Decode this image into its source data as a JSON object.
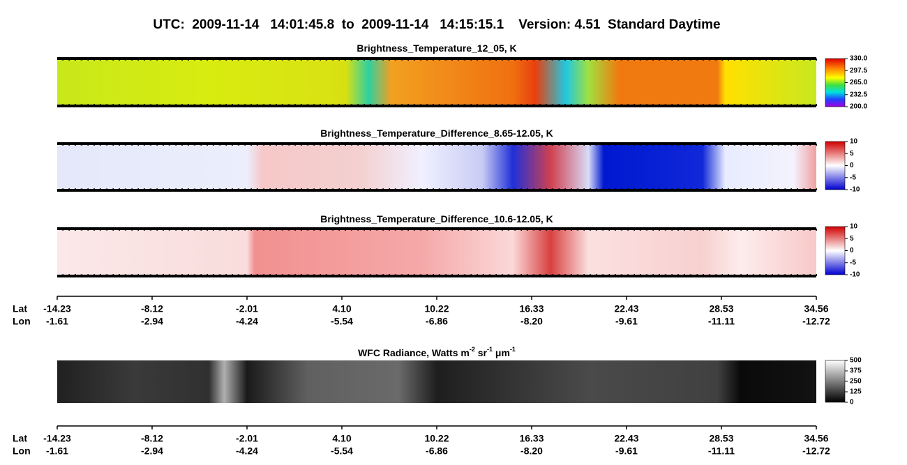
{
  "title": "UTC:  2009-11-14   14:01:45.8  to  2009-11-14   14:15:15.1    Version: 4.51  Standard Daytime",
  "panels": [
    {
      "title": [
        "Brightness_Temperature_12_05, K"
      ],
      "colorbar_ticks": [
        "330.0",
        "297.5",
        "265.0",
        "232.5",
        "200.0"
      ]
    },
    {
      "title": [
        "Brightness_Temperature_Difference_8.65-12.05, K"
      ],
      "colorbar_ticks": [
        "10",
        "5",
        "0",
        "-5",
        "-10"
      ]
    },
    {
      "title": [
        "Brightness_Temperature_Difference_10.6-12.05, K"
      ],
      "colorbar_ticks": [
        "10",
        "5",
        "0",
        "-5",
        "-10"
      ]
    },
    {
      "title": [
        "WFC Radiance, Watts m",
        "-2",
        " sr",
        "-1",
        " μm",
        "-1"
      ],
      "colorbar_ticks": [
        "500",
        "375",
        "250",
        "125",
        "0"
      ]
    }
  ],
  "axes": [
    {
      "lat_label": "Lat",
      "lon_label": "Lon",
      "lat": [
        "-14.23",
        "-8.12",
        "-2.01",
        "4.10",
        "10.22",
        "16.33",
        "22.43",
        "28.53",
        "34.56"
      ],
      "lon": [
        "-1.61",
        "-2.94",
        "-4.24",
        "-5.54",
        "-6.86",
        "-8.20",
        "-9.61",
        "-11.11",
        "-12.72"
      ]
    },
    {
      "lat_label": "Lat",
      "lon_label": "Lon",
      "lat": [
        "-14.23",
        "-8.12",
        "-2.01",
        "4.10",
        "10.22",
        "16.33",
        "22.43",
        "28.53",
        "34.56"
      ],
      "lon": [
        "-1.61",
        "-2.94",
        "-4.24",
        "-5.54",
        "-6.86",
        "-8.20",
        "-9.61",
        "-11.11",
        "-12.72"
      ]
    }
  ]
}
